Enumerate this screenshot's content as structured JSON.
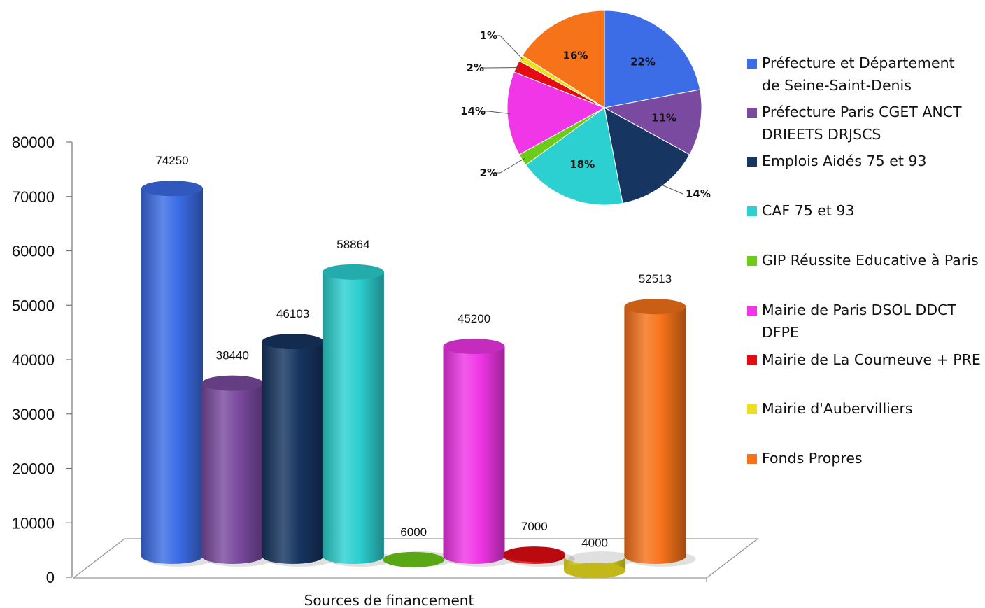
{
  "chart_data": [
    {
      "type": "bar",
      "xlabel": "Sources de financement",
      "ylabel": "",
      "ylim": [
        0,
        80000
      ],
      "yticks": [
        0,
        10000,
        20000,
        30000,
        40000,
        50000,
        60000,
        70000,
        80000
      ],
      "tick_labels": [
        "0",
        "10000",
        "20000",
        "30000",
        "40000",
        "50000",
        "60000",
        "70000",
        "80000"
      ],
      "categories": [
        "Préfecture et Département de Seine-Saint-Denis",
        "Préfecture Paris CGET ANCT DRIEETS DRJSCS",
        "Emplois Aidés 75 et 93",
        "CAF 75 et 93",
        "GIP Réussite Educative à Paris",
        "Mairie de Paris  DSOL DDCT DFPE",
        "Mairie de La Courneuve + PRE",
        "Mairie d'Aubervilliers",
        "Fonds Propres"
      ],
      "values": [
        74250,
        38440,
        46103,
        58864,
        6000,
        45200,
        7000,
        4000,
        52513
      ],
      "value_labels": [
        "74250",
        "38440",
        "46103",
        "58864",
        "6000",
        "45200",
        "7000",
        "4000",
        "52513"
      ],
      "colors": [
        "#3c6de6",
        "#7a4aa0",
        "#163560",
        "#2cd0d0",
        "#6ccc18",
        "#f036e6",
        "#e40c12",
        "#ece020",
        "#f7731a"
      ],
      "style": "3d-cylinder"
    },
    {
      "type": "pie",
      "categories": [
        "Préfecture et Département de Seine-Saint-Denis",
        "Préfecture Paris CGET ANCT DRIEETS DRJSCS",
        "Emplois Aidés 75 et 93",
        "CAF 75 et 93",
        "GIP Réussite Educative à Paris",
        "Mairie de Paris  DSOL DDCT DFPE",
        "Mairie de La Courneuve + PRE",
        "Mairie d'Aubervilliers",
        "Fonds Propres"
      ],
      "values": [
        22,
        11,
        14,
        18,
        2,
        14,
        2,
        1,
        16
      ],
      "labels": [
        "22%",
        "11%",
        "14%",
        "18%",
        "2%",
        "14%",
        "2%",
        "1%",
        "16%"
      ],
      "colors": [
        "#3c6de6",
        "#7a4aa0",
        "#163560",
        "#2cd0d0",
        "#6ccc18",
        "#f036e6",
        "#e40c12",
        "#ece020",
        "#f7731a"
      ]
    }
  ],
  "legend": {
    "placement": "right",
    "items": [
      {
        "lines": [
          "Préfecture et Département",
          "de Seine-Saint-Denis"
        ],
        "color": "#3c6de6"
      },
      {
        "lines": [
          "Préfecture Paris CGET ANCT",
          "DRIEETS DRJSCS"
        ],
        "color": "#7a4aa0"
      },
      {
        "lines": [
          "Emplois Aidés 75 et 93"
        ],
        "color": "#163560"
      },
      {
        "lines": [
          "CAF 75 et 93"
        ],
        "color": "#2cd0d0"
      },
      {
        "lines": [
          "GIP Réussite Educative à Paris"
        ],
        "color": "#6ccc18"
      },
      {
        "lines": [
          "Mairie de Paris  DSOL DDCT",
          "DFPE"
        ],
        "color": "#f036e6"
      },
      {
        "lines": [
          "Mairie de La Courneuve + PRE"
        ],
        "color": "#e40c12"
      },
      {
        "lines": [
          "Mairie d'Aubervilliers"
        ],
        "color": "#ece020"
      },
      {
        "lines": [
          "Fonds Propres"
        ],
        "color": "#f7731a"
      }
    ]
  }
}
